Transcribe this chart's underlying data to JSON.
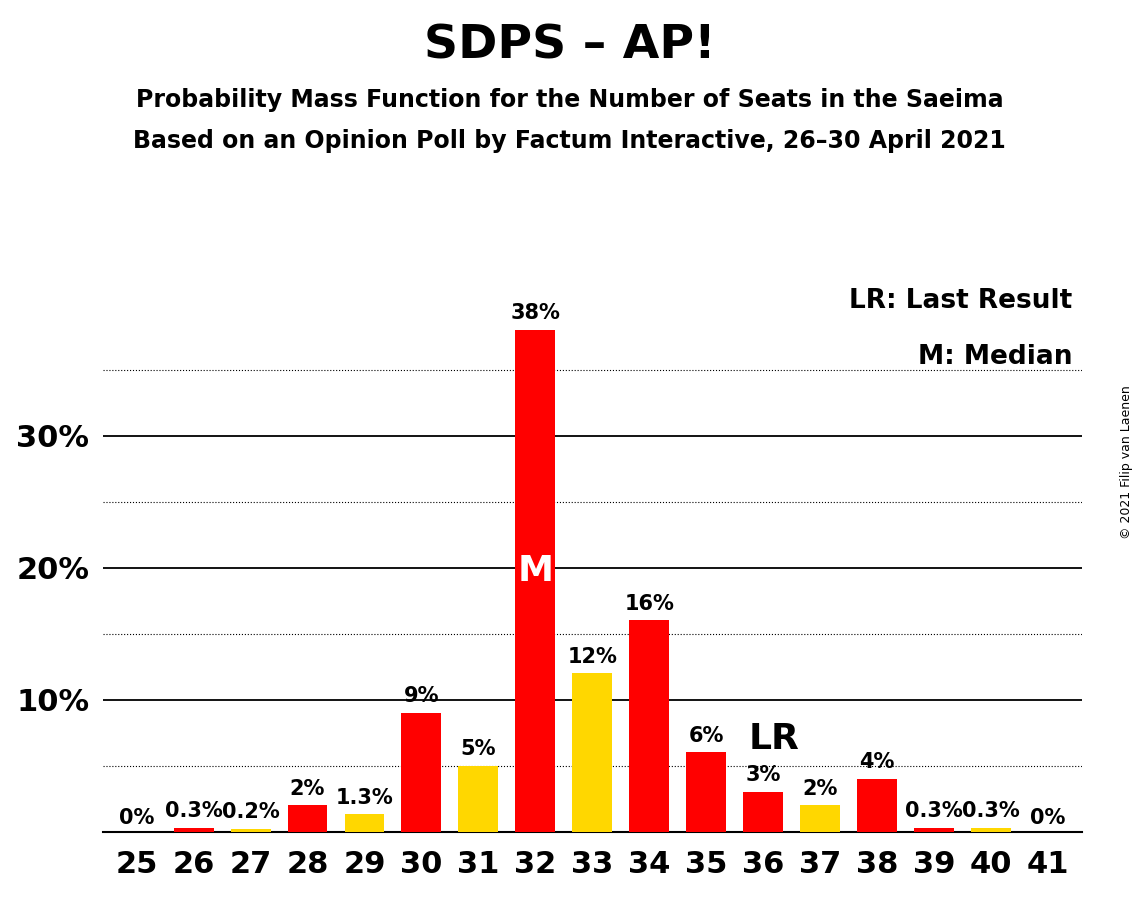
{
  "title": "SDPS – AP!",
  "subtitle1": "Probability Mass Function for the Number of Seats in the Saeima",
  "subtitle2": "Based on an Opinion Poll by Factum Interactive, 26–30 April 2021",
  "copyright": "© 2021 Filip van Laenen",
  "seats": [
    25,
    26,
    27,
    28,
    29,
    30,
    31,
    32,
    33,
    34,
    35,
    36,
    37,
    38,
    39,
    40,
    41
  ],
  "values": [
    0.0,
    0.3,
    0.2,
    2.0,
    1.3,
    9.0,
    5.0,
    38.0,
    12.0,
    16.0,
    6.0,
    3.0,
    2.0,
    4.0,
    0.3,
    0.3,
    0.0
  ],
  "colors": [
    "#FF0000",
    "#FF0000",
    "#FFD700",
    "#FF0000",
    "#FFD700",
    "#FF0000",
    "#FFD700",
    "#FF0000",
    "#FFD700",
    "#FF0000",
    "#FF0000",
    "#FF0000",
    "#FFD700",
    "#FF0000",
    "#FF0000",
    "#FFD700",
    "#FF0000"
  ],
  "labels": [
    "0%",
    "0.3%",
    "0.2%",
    "2%",
    "1.3%",
    "9%",
    "5%",
    "38%",
    "12%",
    "16%",
    "6%",
    "3%",
    "2%",
    "4%",
    "0.3%",
    "0.3%",
    "0%"
  ],
  "median_seat": 32,
  "lr_seat": 35,
  "legend_lr": "LR: Last Result",
  "legend_m": "M: Median",
  "ylim_max": 42,
  "solid_yticks": [
    10,
    20,
    30
  ],
  "dotted_yticks": [
    5,
    15,
    25,
    35
  ],
  "background_color": "#FFFFFF",
  "bar_width": 0.7,
  "title_fontsize": 34,
  "subtitle_fontsize": 17,
  "axis_tick_fontsize": 22,
  "bar_label_fontsize": 15,
  "legend_fontsize": 19,
  "annotation_m_fontsize": 26,
  "annotation_lr_fontsize": 26,
  "copyright_fontsize": 9
}
